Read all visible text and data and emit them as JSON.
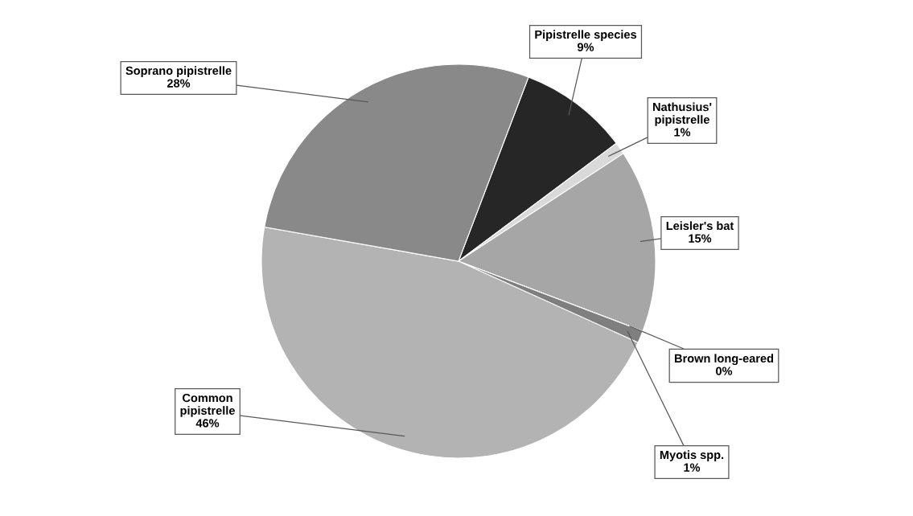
{
  "chart_data": {
    "type": "pie",
    "categories": [
      "Pipistrelle species",
      "Nathusius' pipistrelle",
      "Leisler's bat",
      "Brown long-eared",
      "Myotis spp.",
      "Common pipistrelle",
      "Soprano pipistrelle"
    ],
    "values": [
      9,
      1,
      15,
      0,
      1,
      46,
      28
    ],
    "colors": [
      "#262626",
      "#d9d9d9",
      "#a6a6a6",
      "#595959",
      "#7f7f7f",
      "#b3b3b3",
      "#898989"
    ],
    "value_labels": [
      "9%",
      "1%",
      "15%",
      "0%",
      "1%",
      "46%",
      "28%"
    ]
  }
}
